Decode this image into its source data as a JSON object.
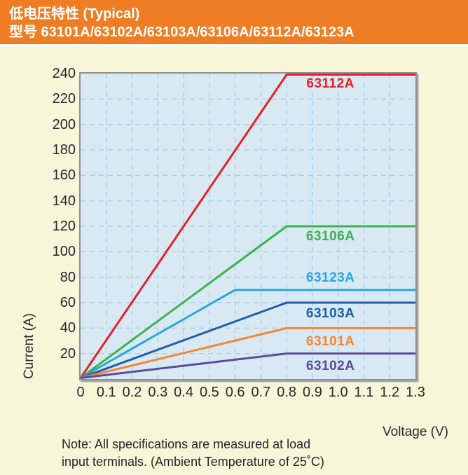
{
  "header": {
    "title": "低电压特性 (Typical)",
    "subtitle": "型号 63101A/63102A/63103A/63106A/63112A/63123A",
    "bg_color": "#ef7d23",
    "text_color": "#ffffff"
  },
  "note": {
    "line1": "Note: All specifications are measured at load",
    "line2": "input terminals. (Ambient Temperature of 25˚C)"
  },
  "colors": {
    "page_bg": "#f7f6d8",
    "plot_bg": "#d9e9f4",
    "grid": "#a9cde9",
    "plot_border": "#8f8f8f",
    "text": "#2a2630"
  },
  "chart_data": {
    "type": "line",
    "title": "低电压特性 (Typical) 型号 63101A/63102A/63103A/63106A/63112A/63123A",
    "xlabel": "Voltage (V)",
    "ylabel": "Current (A)",
    "xlim": [
      0,
      1.3
    ],
    "ylim": [
      0,
      240
    ],
    "grid": "dashed",
    "legend_position": "inline-labels",
    "x_tick_values": [
      0,
      0.1,
      0.2,
      0.3,
      0.4,
      0.5,
      0.6,
      0.7,
      0.8,
      0.9,
      1.0,
      1.1,
      1.2,
      1.3
    ],
    "x_tick_labels": [
      "0",
      "0.1",
      "0.2",
      "0.3",
      "0.4",
      "0.5",
      "0.6",
      "0.7",
      "0.8",
      "0.9",
      "1.0",
      "1.1",
      "1.2",
      "1.3"
    ],
    "y_tick_values": [
      20,
      40,
      60,
      80,
      100,
      120,
      140,
      160,
      180,
      200,
      220,
      240
    ],
    "y_tick_labels": [
      "20",
      "40",
      "60",
      "80",
      "100",
      "120",
      "140",
      "160",
      "180",
      "200",
      "220",
      "240"
    ],
    "series": [
      {
        "name": "63112A",
        "color": "#e62129",
        "max_current_a": 240,
        "knee_voltage_v": 0.8,
        "points": [
          [
            0,
            0
          ],
          [
            0.8,
            240
          ],
          [
            1.3,
            240
          ]
        ],
        "label_pos": [
          0.97,
          232
        ]
      },
      {
        "name": "63106A",
        "color": "#3ab44a",
        "max_current_a": 120,
        "knee_voltage_v": 0.8,
        "points": [
          [
            0,
            0
          ],
          [
            0.8,
            120
          ],
          [
            1.3,
            120
          ]
        ],
        "label_pos": [
          0.97,
          112
        ]
      },
      {
        "name": "63123A",
        "color": "#29a8e0",
        "max_current_a": 70,
        "knee_voltage_v": 0.6,
        "points": [
          [
            0,
            0
          ],
          [
            0.6,
            70
          ],
          [
            1.3,
            70
          ]
        ],
        "label_pos": [
          0.97,
          79
        ]
      },
      {
        "name": "63103A",
        "color": "#1c5fa8",
        "max_current_a": 60,
        "knee_voltage_v": 0.8,
        "points": [
          [
            0,
            0
          ],
          [
            0.8,
            60
          ],
          [
            1.3,
            60
          ]
        ],
        "label_pos": [
          0.97,
          51
        ]
      },
      {
        "name": "63101A",
        "color": "#f58634",
        "max_current_a": 40,
        "knee_voltage_v": 0.8,
        "points": [
          [
            0,
            0
          ],
          [
            0.8,
            40
          ],
          [
            1.3,
            40
          ]
        ],
        "label_pos": [
          0.97,
          29
        ]
      },
      {
        "name": "63102A",
        "color": "#5c4a9c",
        "max_current_a": 20,
        "knee_voltage_v": 0.8,
        "points": [
          [
            0,
            0
          ],
          [
            0.8,
            20
          ],
          [
            1.3,
            20
          ]
        ],
        "label_pos": [
          0.97,
          10
        ]
      }
    ]
  }
}
